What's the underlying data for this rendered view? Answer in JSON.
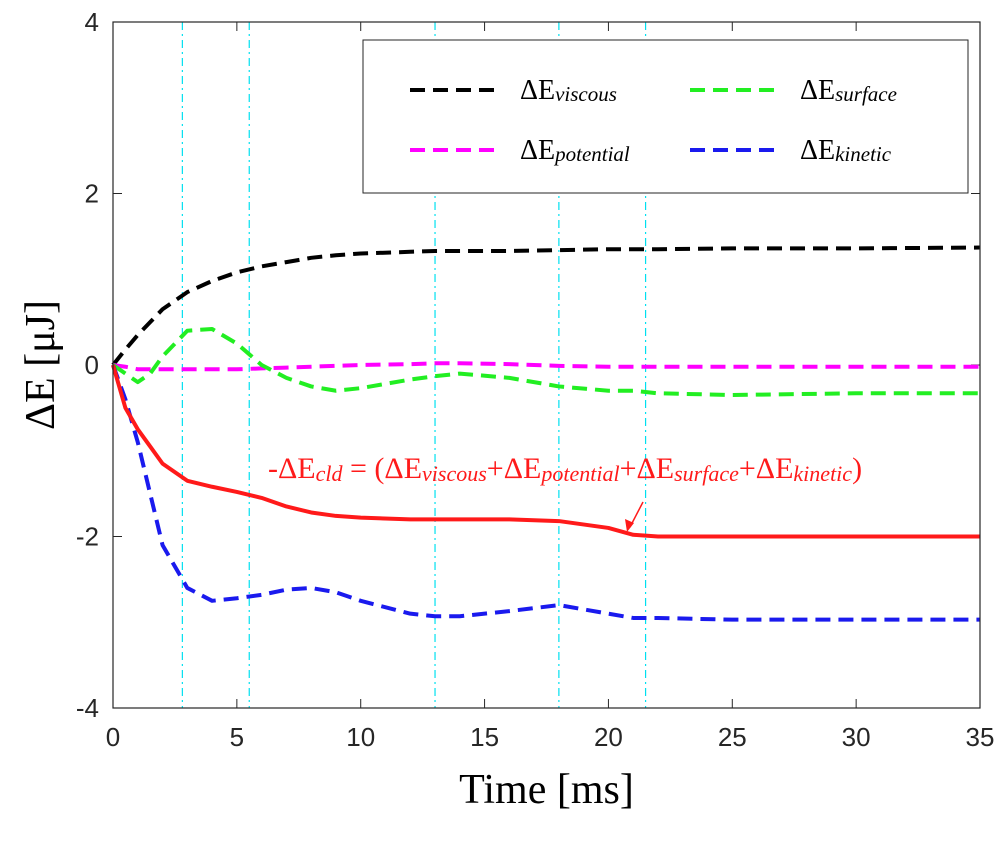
{
  "chart_data": {
    "type": "line",
    "xlabel": "Time [ms]",
    "ylabel": "ΔE [μJ]",
    "xlim": [
      0,
      35
    ],
    "ylim": [
      -4,
      4
    ],
    "xticks": [
      0,
      5,
      10,
      15,
      20,
      25,
      30,
      35
    ],
    "yticks": [
      -4,
      -2,
      0,
      2,
      4
    ],
    "vlines": [
      2.8,
      5.5,
      13,
      18,
      21.5
    ],
    "vline_color": "#00e0f0",
    "legend": "upper right",
    "x": [
      0,
      0.5,
      1,
      1.5,
      2,
      3,
      4,
      5,
      6,
      7,
      8,
      9,
      10,
      12,
      13,
      14,
      16,
      18,
      20,
      21,
      22,
      25,
      30,
      35
    ],
    "series": [
      {
        "name": "ΔE",
        "name_sub": "viscous",
        "color": "#000000",
        "dashed": true,
        "values": [
          0,
          0.18,
          0.35,
          0.5,
          0.65,
          0.85,
          0.98,
          1.08,
          1.15,
          1.2,
          1.25,
          1.28,
          1.3,
          1.32,
          1.33,
          1.33,
          1.33,
          1.34,
          1.35,
          1.35,
          1.35,
          1.36,
          1.36,
          1.37
        ]
      },
      {
        "name": "ΔE",
        "name_sub": "potential",
        "color": "#ff00ff",
        "dashed": true,
        "values": [
          0,
          -0.02,
          -0.05,
          -0.05,
          -0.05,
          -0.05,
          -0.05,
          -0.05,
          -0.04,
          -0.03,
          -0.02,
          -0.01,
          0,
          0.01,
          0.02,
          0.02,
          0.01,
          -0.01,
          -0.02,
          -0.02,
          -0.02,
          -0.02,
          -0.02,
          -0.02
        ]
      },
      {
        "name": "ΔE",
        "name_sub": "surface",
        "color": "#22ee22",
        "dashed": true,
        "values": [
          0,
          -0.1,
          -0.2,
          -0.1,
          0.1,
          0.4,
          0.42,
          0.25,
          0,
          -0.15,
          -0.25,
          -0.3,
          -0.27,
          -0.17,
          -0.13,
          -0.1,
          -0.15,
          -0.25,
          -0.3,
          -0.3,
          -0.33,
          -0.35,
          -0.33,
          -0.33
        ]
      },
      {
        "name": "ΔE",
        "name_sub": "kinetic",
        "color": "#1a1aee",
        "dashed": true,
        "values": [
          0,
          -0.4,
          -0.9,
          -1.5,
          -2.1,
          -2.6,
          -2.75,
          -2.72,
          -2.68,
          -2.62,
          -2.6,
          -2.65,
          -2.75,
          -2.9,
          -2.93,
          -2.93,
          -2.87,
          -2.8,
          -2.9,
          -2.95,
          -2.95,
          -2.97,
          -2.97,
          -2.97
        ]
      },
      {
        "color": "#ff1a1a",
        "dashed": false,
        "values": [
          0,
          -0.5,
          -0.75,
          -0.95,
          -1.15,
          -1.35,
          -1.42,
          -1.48,
          -1.55,
          -1.65,
          -1.72,
          -1.76,
          -1.78,
          -1.8,
          -1.8,
          -1.8,
          -1.8,
          -1.82,
          -1.9,
          -1.98,
          -2.0,
          -2.0,
          -2.0,
          -2.0
        ]
      }
    ],
    "annotation_color": "#ff1a1a",
    "annotation_parts": [
      "-ΔE",
      "cld",
      " = (ΔE",
      "viscous",
      "+ΔE",
      "potential",
      "+ΔE",
      "surface",
      "+ΔE",
      "kinetic",
      ")"
    ]
  }
}
